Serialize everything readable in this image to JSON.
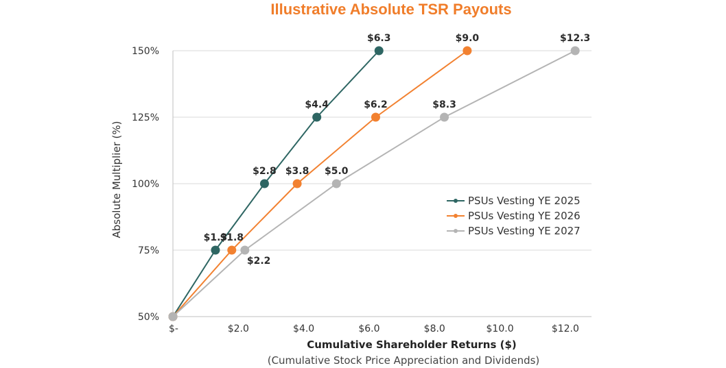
{
  "chart_data": {
    "type": "line",
    "title": "Illustrative Absolute TSR Payouts",
    "xlabel": "Cumulative Shareholder Returns ($)",
    "xlabel_sub": "(Cumulative Stock Price Appreciation and Dividends)",
    "ylabel": "Absolute Multiplier (%)",
    "xlim": [
      0,
      12.8
    ],
    "ylim": [
      50,
      150
    ],
    "x_ticks": [
      {
        "value": 0,
        "label": "$-"
      },
      {
        "value": 2,
        "label": "$2.0"
      },
      {
        "value": 4,
        "label": "$4.0"
      },
      {
        "value": 6,
        "label": "$6.0"
      },
      {
        "value": 8,
        "label": "$8.0"
      },
      {
        "value": 10,
        "label": "$10.0"
      },
      {
        "value": 12,
        "label": "$12.0"
      }
    ],
    "y_ticks": [
      {
        "value": 50,
        "label": "50%"
      },
      {
        "value": 75,
        "label": "75%"
      },
      {
        "value": 100,
        "label": "100%"
      },
      {
        "value": 125,
        "label": "125%"
      },
      {
        "value": 150,
        "label": "150%"
      }
    ],
    "grid": "horizontal",
    "legend_position": "right",
    "title_color": "#f07d2a",
    "series": [
      {
        "name": "PSUs Vesting YE 2025",
        "color": "#2e6663",
        "points": [
          {
            "x": 0,
            "y": 50,
            "label": ""
          },
          {
            "x": 1.3,
            "y": 75,
            "label": "$1.3"
          },
          {
            "x": 2.8,
            "y": 100,
            "label": "$2.8"
          },
          {
            "x": 4.4,
            "y": 125,
            "label": "$4.4"
          },
          {
            "x": 6.3,
            "y": 150,
            "label": "$6.3"
          }
        ]
      },
      {
        "name": "PSUs Vesting YE 2026",
        "color": "#f28130",
        "points": [
          {
            "x": 0,
            "y": 50,
            "label": ""
          },
          {
            "x": 1.8,
            "y": 75,
            "label": "$1.8"
          },
          {
            "x": 3.8,
            "y": 100,
            "label": "$3.8"
          },
          {
            "x": 6.2,
            "y": 125,
            "label": "$6.2"
          },
          {
            "x": 9.0,
            "y": 150,
            "label": "$9.0"
          }
        ]
      },
      {
        "name": "PSUs Vesting YE 2027",
        "color": "#b4b4b4",
        "points": [
          {
            "x": 0,
            "y": 50,
            "label": ""
          },
          {
            "x": 2.2,
            "y": 75,
            "label": "$2.2"
          },
          {
            "x": 5.0,
            "y": 100,
            "label": "$5.0"
          },
          {
            "x": 8.3,
            "y": 125,
            "label": "$8.3"
          },
          {
            "x": 12.3,
            "y": 150,
            "label": "$12.3"
          }
        ]
      }
    ]
  }
}
